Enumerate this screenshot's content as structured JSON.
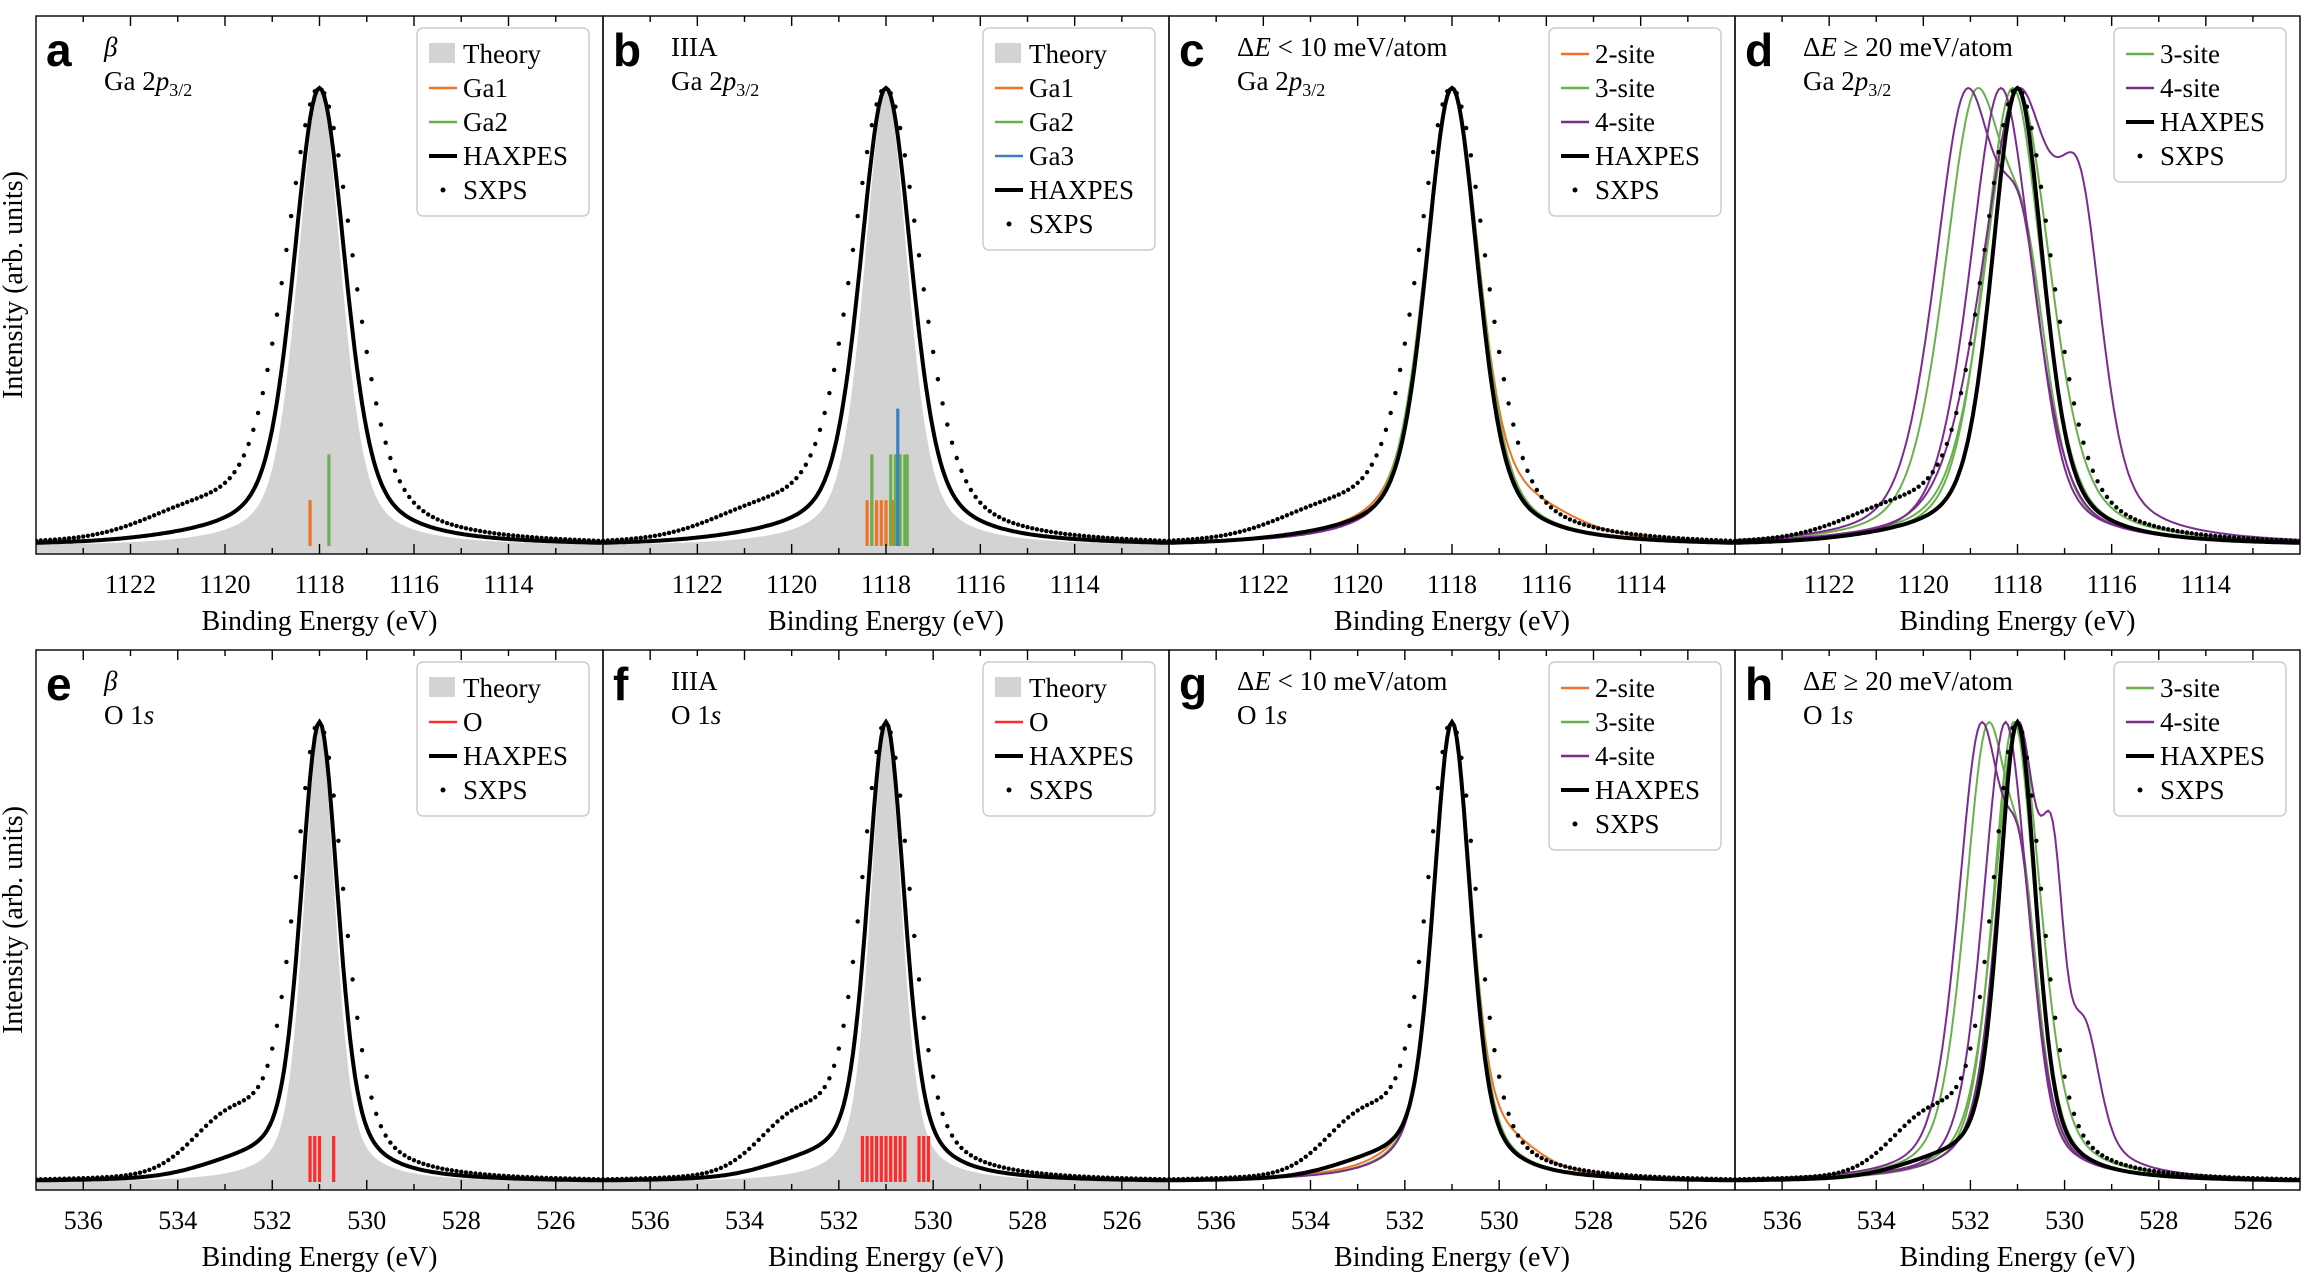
{
  "chart_data": [
    {
      "id": "a",
      "type": "line",
      "letter": "a",
      "label_lines": [
        "β",
        "Ga 2p3/2"
      ],
      "xlabel": "Binding Energy (eV)",
      "ylabel": "Intensity (arb. units)",
      "xlim": [
        1124,
        1112
      ],
      "xticks": [
        1122,
        1120,
        1118,
        1116,
        1114
      ],
      "peak": 1118.0,
      "legend": [
        "Theory",
        "Ga1",
        "Ga2",
        "HAXPES",
        "SXPS"
      ],
      "sites": [
        {
          "name": "Ga1",
          "energies": [
            1118.2
          ],
          "height": 0.1
        },
        {
          "name": "Ga2",
          "energies": [
            1117.8
          ],
          "height": 0.2
        }
      ]
    },
    {
      "id": "b",
      "type": "line",
      "letter": "b",
      "label_lines": [
        "IIIA",
        "Ga 2p3/2"
      ],
      "xlabel": "Binding Energy (eV)",
      "ylabel": "",
      "xlim": [
        1124,
        1112
      ],
      "xticks": [
        1122,
        1120,
        1118,
        1116,
        1114
      ],
      "peak": 1118.0,
      "legend": [
        "Theory",
        "Ga1",
        "Ga2",
        "Ga3",
        "HAXPES",
        "SXPS"
      ],
      "sites": [
        {
          "name": "Ga1",
          "energies": [
            1118.4,
            1118.3,
            1118.2,
            1118.1,
            1118.0,
            1117.9,
            1117.85
          ],
          "height": 0.1
        },
        {
          "name": "Ga2",
          "energies": [
            1118.3,
            1117.9,
            1117.8,
            1117.7,
            1117.6,
            1117.55
          ],
          "height": 0.2
        },
        {
          "name": "Ga3",
          "energies": [
            1117.75
          ],
          "height": 0.3
        }
      ]
    },
    {
      "id": "c",
      "type": "line",
      "letter": "c",
      "label_lines": [
        "ΔE < 10 meV/atom",
        "Ga 2p3/2"
      ],
      "xlabel": "Binding Energy (eV)",
      "ylabel": "",
      "xlim": [
        1124,
        1112
      ],
      "xticks": [
        1122,
        1120,
        1118,
        1116,
        1114
      ],
      "peak": 1118.0,
      "legend": [
        "2-site",
        "3-site",
        "4-site",
        "HAXPES",
        "SXPS"
      ]
    },
    {
      "id": "d",
      "type": "line",
      "letter": "d",
      "label_lines": [
        "ΔE ≥ 20 meV/atom",
        "Ga 2p3/2"
      ],
      "xlabel": "Binding Energy (eV)",
      "ylabel": "",
      "xlim": [
        1124,
        1112
      ],
      "xticks": [
        1122,
        1120,
        1118,
        1116,
        1114
      ],
      "peak": 1118.0,
      "legend": [
        "3-site",
        "4-site",
        "HAXPES",
        "SXPS"
      ]
    },
    {
      "id": "e",
      "type": "line",
      "letter": "e",
      "label_lines": [
        "β",
        "O 1s"
      ],
      "xlabel": "Binding Energy (eV)",
      "ylabel": "Intensity (arb. units)",
      "xlim": [
        537,
        525
      ],
      "xticks": [
        536,
        534,
        532,
        530,
        528,
        526
      ],
      "peak": 531.0,
      "legend": [
        "Theory",
        "O",
        "HAXPES",
        "SXPS"
      ],
      "sites": [
        {
          "name": "O",
          "energies": [
            531.2,
            531.1,
            531.0,
            530.7
          ],
          "height": 0.1
        }
      ]
    },
    {
      "id": "f",
      "type": "line",
      "letter": "f",
      "label_lines": [
        "IIIA",
        "O 1s"
      ],
      "xlabel": "Binding Energy (eV)",
      "ylabel": "",
      "xlim": [
        537,
        525
      ],
      "xticks": [
        536,
        534,
        532,
        530,
        528,
        526
      ],
      "peak": 531.0,
      "legend": [
        "Theory",
        "O",
        "HAXPES",
        "SXPS"
      ],
      "sites": [
        {
          "name": "O",
          "energies": [
            531.5,
            531.4,
            531.3,
            531.2,
            531.1,
            531.0,
            530.9,
            530.8,
            530.7,
            530.6,
            530.3,
            530.2,
            530.1
          ],
          "height": 0.1
        }
      ]
    },
    {
      "id": "g",
      "type": "line",
      "letter": "g",
      "label_lines": [
        "ΔE < 10 meV/atom",
        "O 1s"
      ],
      "xlabel": "Binding Energy (eV)",
      "ylabel": "",
      "xlim": [
        537,
        525
      ],
      "xticks": [
        536,
        534,
        532,
        530,
        528,
        526
      ],
      "peak": 531.0,
      "legend": [
        "2-site",
        "3-site",
        "4-site",
        "HAXPES",
        "SXPS"
      ]
    },
    {
      "id": "h",
      "type": "line",
      "letter": "h",
      "label_lines": [
        "ΔE ≥ 20 meV/atom",
        "O 1s"
      ],
      "xlabel": "Binding Energy (eV)",
      "ylabel": "",
      "xlim": [
        537,
        525
      ],
      "xticks": [
        536,
        534,
        532,
        530,
        528,
        526
      ],
      "peak": 531.0,
      "legend": [
        "3-site",
        "4-site",
        "HAXPES",
        "SXPS"
      ]
    }
  ],
  "colors": {
    "theory_fill": "#d3d3d3",
    "Ga1": "#f07227",
    "Ga2": "#6ab04c",
    "Ga3": "#3a7fc4",
    "O": "#ff2a2a",
    "2-site": "#f07227",
    "3-site": "#6ab04c",
    "4-site": "#7b2d8e",
    "HAXPES": "#000000",
    "SXPS": "#000000"
  }
}
